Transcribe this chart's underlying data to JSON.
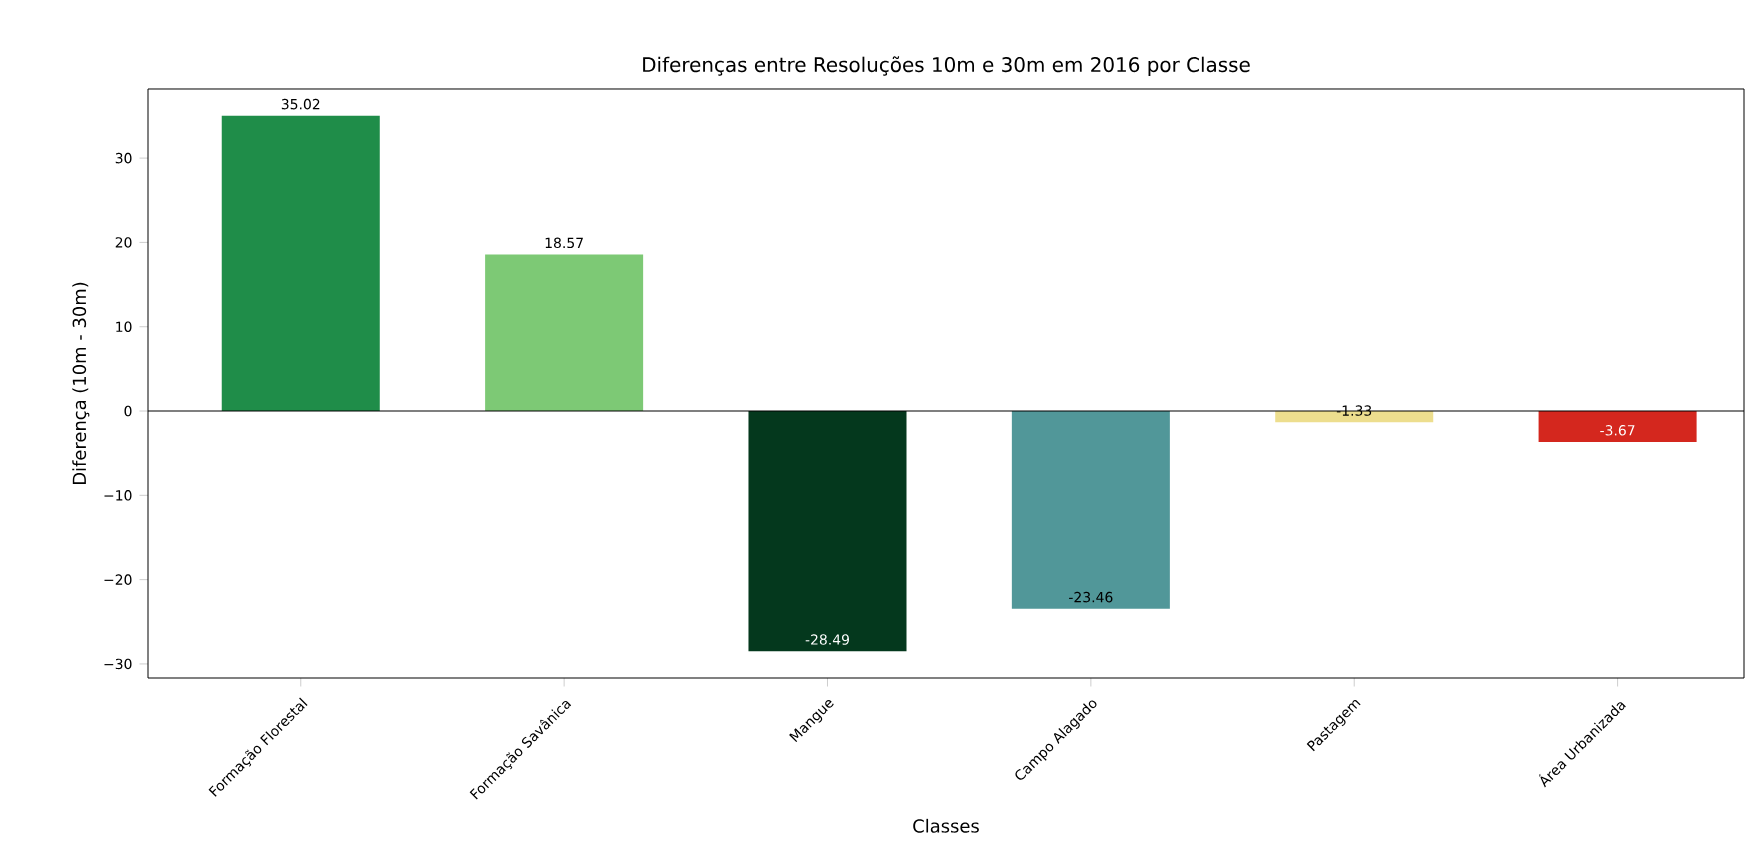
{
  "chart_data": {
    "type": "bar",
    "title": "Diferenças entre Resoluções 10m e 30m em 2016 por Classe",
    "xlabel": "Classes",
    "ylabel": "Diferença (10m - 30m)",
    "categories": [
      "Formação Florestal",
      "Formação Savânica",
      "Mangue",
      "Campo Alagado",
      "Pastagem",
      "Área Urbanizada"
    ],
    "values": [
      35.02,
      18.57,
      -28.49,
      -23.46,
      -1.33,
      -3.67
    ],
    "colors": [
      "#1f8d49",
      "#7dc975",
      "#04381d",
      "#519799",
      "#edde8e",
      "#d4271e"
    ],
    "ylim": [
      -31.67,
      38.2
    ],
    "yticks": [
      {
        "value": -30,
        "label": "−30"
      },
      {
        "value": -20,
        "label": "−20"
      },
      {
        "value": -10,
        "label": "−10"
      },
      0,
      10,
      20,
      30
    ],
    "data_labels": true,
    "grid": false,
    "ref_lines": [
      {
        "axis": "y",
        "value": 0,
        "color": "#000000"
      }
    ]
  }
}
